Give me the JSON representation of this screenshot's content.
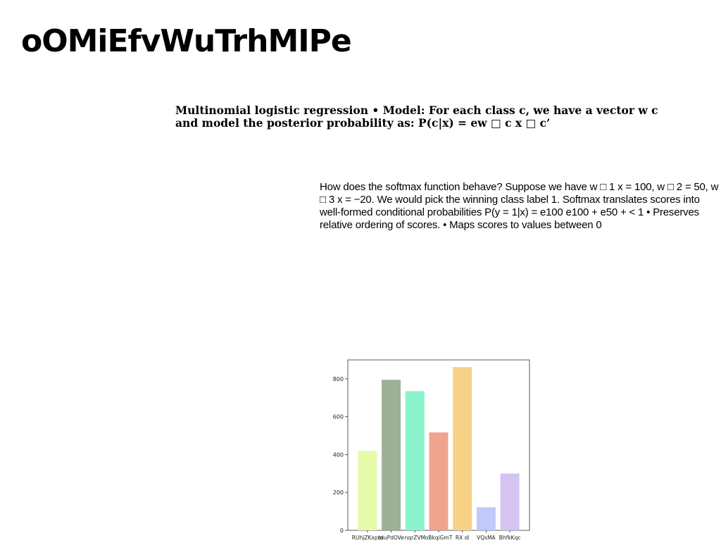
{
  "slide": {
    "title": "oOMiEfvWuTrhMIPe",
    "heading": "Multinomial logistic regression • Model: For each class c, we have a vector w c and model the posterior probability as: P(c|x) = ew □ c x □ c’",
    "body": "How does the softmax function behave? Suppose we have w □ 1 x = 100, w □ 2 = 50, w □ 3 x = −20. We would pick the winning class label 1. Softmax translates scores into well-formed conditional probabilities P(y = 1|x) = e100 e100 + e50 + < 1 • Preserves relative ordering of scores. • Maps scores to values between 0"
  },
  "chart_data": {
    "type": "bar",
    "categories": [
      "RUhjZKxpm",
      "tduPdOVe",
      "nqrZVM",
      "oBkqiGmT",
      "RX di",
      "VQsMA",
      "BhfkKqc"
    ],
    "values": [
      420,
      795,
      735,
      517,
      862,
      122,
      300
    ],
    "colors": [
      "#e6fbaa",
      "#9eb097",
      "#8bf3cc",
      "#f0a38f",
      "#f7d186",
      "#c0c9f7",
      "#d4c4ef"
    ],
    "yticks": [
      0,
      200,
      400,
      600,
      800
    ],
    "ylim": [
      0,
      900
    ],
    "grid": false,
    "title": "",
    "xlabel": "",
    "ylabel": ""
  }
}
